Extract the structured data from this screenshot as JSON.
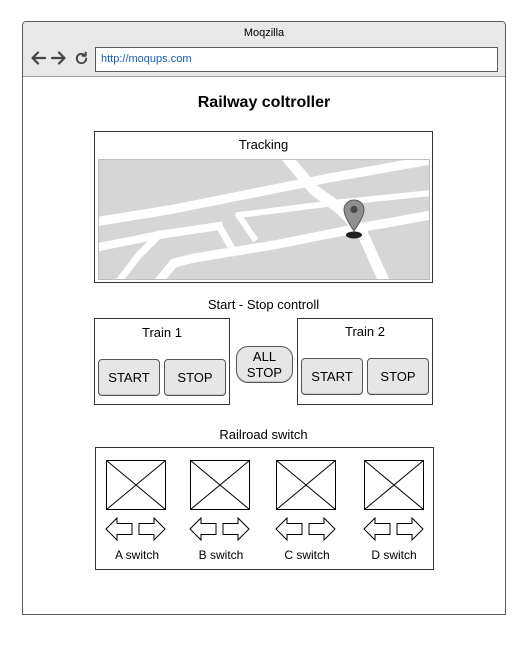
{
  "browser": {
    "window_title": "Moqzilla",
    "url": "http://moqups.com"
  },
  "page": {
    "title": "Railway coltroller"
  },
  "tracking": {
    "label": "Tracking"
  },
  "start_stop": {
    "section_label": "Start - Stop controll",
    "train1": {
      "label": "Train 1",
      "start": "START",
      "stop": "STOP"
    },
    "train2": {
      "label": "Train 2",
      "start": "START",
      "stop": "STOP"
    },
    "all_stop_line1": "ALL",
    "all_stop_line2": "STOP"
  },
  "railroad": {
    "section_label": "Railroad switch",
    "switches": [
      {
        "label": "A switch"
      },
      {
        "label": "B switch"
      },
      {
        "label": "C switch"
      },
      {
        "label": "D switch"
      }
    ]
  },
  "icons": {
    "back": "arrow-left-icon",
    "forward": "arrow-right-icon",
    "reload": "reload-icon",
    "map_pin": "map-pin-icon",
    "image_placeholder": "image-placeholder-icon",
    "switch_left": "arrow-left-outline-icon",
    "switch_right": "arrow-right-outline-icon"
  }
}
